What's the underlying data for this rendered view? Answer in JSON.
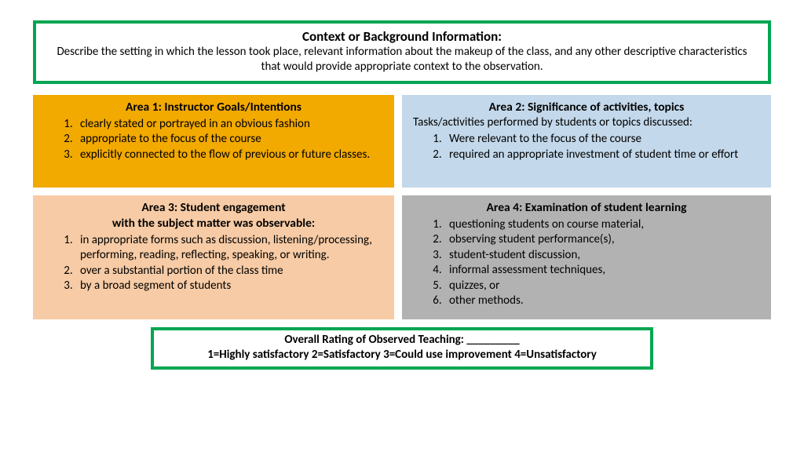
{
  "context": {
    "title": "Context or Background Information:",
    "desc": "Describe the setting in which the lesson took place, relevant information about the makeup of the class, and any other descriptive characteristics that would provide appropriate context to the observation."
  },
  "area1": {
    "title": "Area 1: Instructor Goals/Intentions",
    "items": [
      "clearly stated or portrayed in an obvious fashion",
      "appropriate to the focus of the course",
      "explicitly connected to the flow of previous or future classes."
    ]
  },
  "area2": {
    "title": "Area 2: Significance of activities, topics",
    "sub": "Tasks/activities performed by students or topics discussed:",
    "items": [
      "Were relevant to the focus of the course",
      "required an appropriate investment of student time or effort"
    ]
  },
  "area3": {
    "title_line1": "Area 3: Student engagement",
    "title_line2": "with the subject matter was observable:",
    "items": [
      "in appropriate forms such as discussion, listening/processing, performing, reading, reflecting, speaking, or writing.",
      "over a substantial portion of the class time",
      "by a broad segment of students"
    ]
  },
  "area4": {
    "title": "Area 4: Examination of student learning",
    "items": [
      "questioning students on course material,",
      "observing student performance(s),",
      "student-student discussion,",
      "informal assessment techniques,",
      "quizzes, or",
      "other methods."
    ]
  },
  "overall": {
    "line1": "Overall Rating of Observed Teaching: _________",
    "line2": "1=Highly satisfactory  2=Satisfactory  3=Could use improvement  4=Unsatisfactory"
  },
  "colors": {
    "green_border": "#00a651",
    "a1_bg": "#f2a900",
    "a2_bg": "#c3d8ea",
    "a3_bg": "#f7cba5",
    "a4_bg": "#b2b2b2"
  }
}
